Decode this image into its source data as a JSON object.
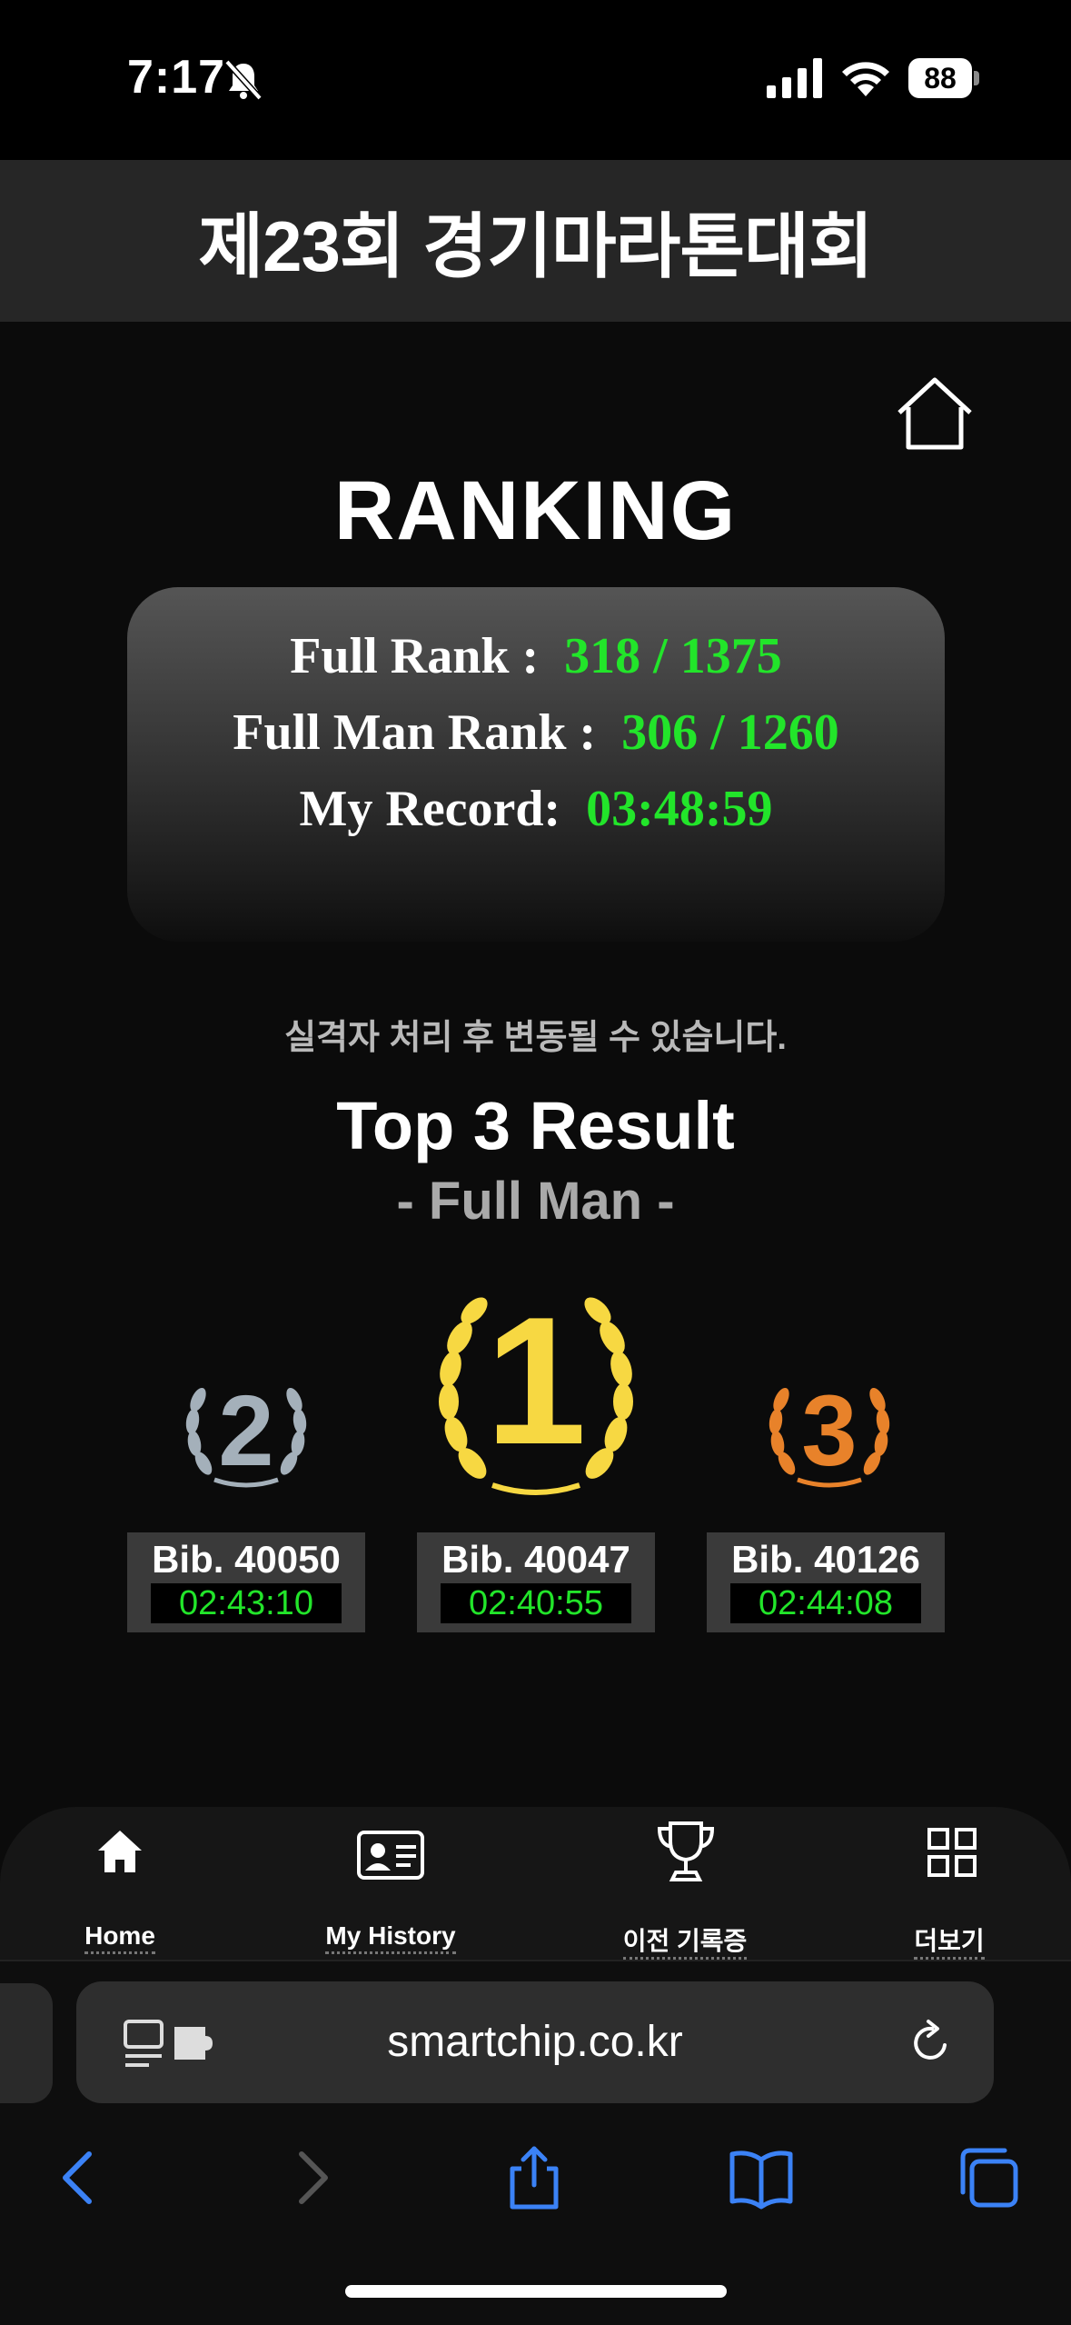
{
  "status_bar": {
    "time": "7:17",
    "battery": "88"
  },
  "header": {
    "title": "제23회 경기마라톤대회"
  },
  "ranking": {
    "title": "RANKING",
    "full_rank_label": "Full Rank :",
    "full_rank_value": "318 / 1375",
    "full_man_rank_label": "Full Man Rank :",
    "full_man_rank_value": "306 / 1260",
    "my_record_label": "My Record:",
    "my_record_value": "03:48:59"
  },
  "notice": "실격자 처리 후 변동될 수 있습니다.",
  "top3": {
    "title": "Top 3 Result",
    "subtitle": "- Full Man -",
    "places": [
      {
        "rank": "1",
        "bib": "Bib. 40047",
        "time": "02:40:55",
        "color": "#f7d842"
      },
      {
        "rank": "2",
        "bib": "Bib. 40050",
        "time": "02:43:10",
        "color": "#a4b0ba"
      },
      {
        "rank": "3",
        "bib": "Bib. 40126",
        "time": "02:44:08",
        "color": "#e8822a"
      }
    ]
  },
  "bottom_nav": {
    "items": [
      {
        "label": "Home",
        "icon": "home-icon"
      },
      {
        "label": "My History",
        "icon": "id-card-icon"
      },
      {
        "label": "이전 기록증",
        "icon": "trophy-icon"
      },
      {
        "label": "더보기",
        "icon": "grid-icon"
      }
    ]
  },
  "browser": {
    "url": "smartchip.co.kr"
  },
  "colors": {
    "accent_green": "#22e52a",
    "safari_blue": "#3b82f6"
  }
}
